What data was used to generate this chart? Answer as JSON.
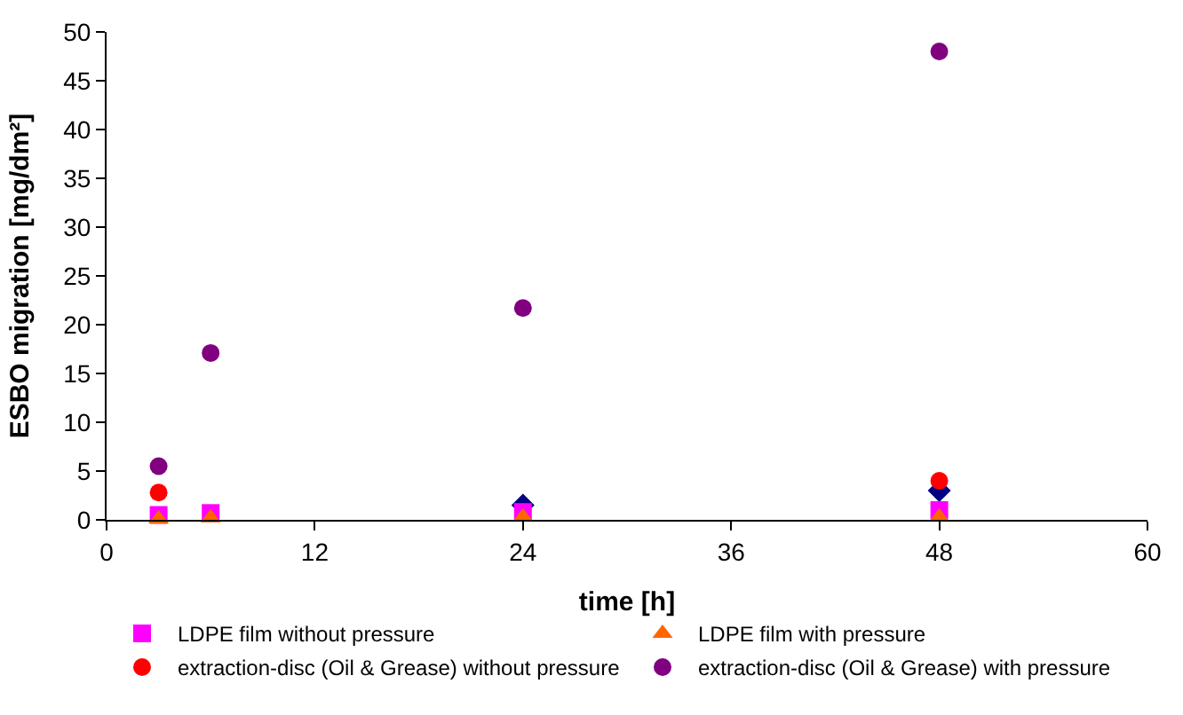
{
  "chart_data": {
    "type": "scatter",
    "xlabel": "time [h]",
    "ylabel": "ESBO migration [mg/dm²]",
    "xlim": [
      0,
      60
    ],
    "xticks": [
      0,
      12,
      24,
      36,
      48,
      60
    ],
    "ylim": [
      0,
      50
    ],
    "yticks": [
      0,
      5,
      10,
      15,
      20,
      25,
      30,
      35,
      40,
      45,
      50
    ],
    "legend": "bottom",
    "series": [
      {
        "color": "#000080",
        "marker": "diamond",
        "x": [
          24,
          48
        ],
        "values": [
          1.5,
          3.0
        ]
      },
      {
        "name": "LDPE film without pressure",
        "color": "#ff00ff",
        "marker": "square",
        "x": [
          3,
          6,
          24,
          48
        ],
        "values": [
          0.5,
          0.7,
          0.8,
          1.0
        ]
      },
      {
        "name": "LDPE film with pressure",
        "color": "#ff6600",
        "marker": "triangle",
        "x": [
          3,
          6,
          24,
          48
        ],
        "values": [
          0.1,
          0.2,
          0.3,
          0.3
        ]
      },
      {
        "name": "extraction-disc (Oil & Grease) without pressure",
        "color": "#ff0000",
        "marker": "circle",
        "x": [
          3,
          48
        ],
        "values": [
          2.8,
          4.0
        ]
      },
      {
        "name": "extraction-disc (Oil & Grease) with pressure",
        "color": "#800080",
        "marker": "circle",
        "x": [
          3,
          6,
          24,
          48
        ],
        "values": [
          5.5,
          17.1,
          21.7,
          48.0
        ]
      }
    ]
  }
}
